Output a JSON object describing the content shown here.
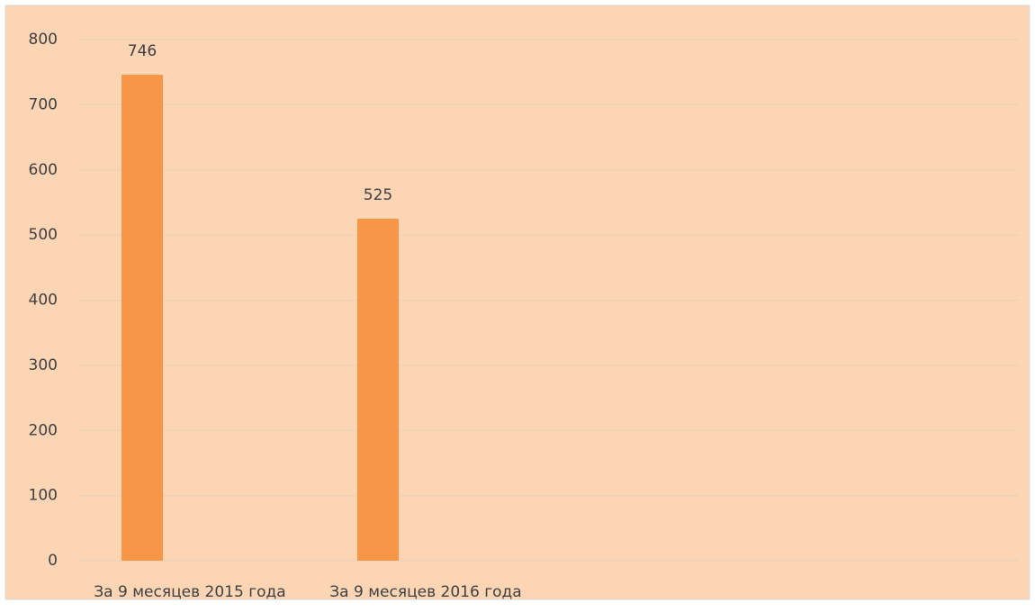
{
  "chart_data": {
    "type": "bar",
    "categories": [
      "За 9 месяцев 2015 года",
      "За 9 месяцев 2016 года",
      null,
      null
    ],
    "values": [
      746,
      525,
      null,
      null
    ],
    "color": "#f79646",
    "ylim": [
      0,
      800
    ],
    "yticks": [
      0,
      100,
      200,
      300,
      400,
      500,
      600,
      700,
      800
    ],
    "grid": true
  }
}
